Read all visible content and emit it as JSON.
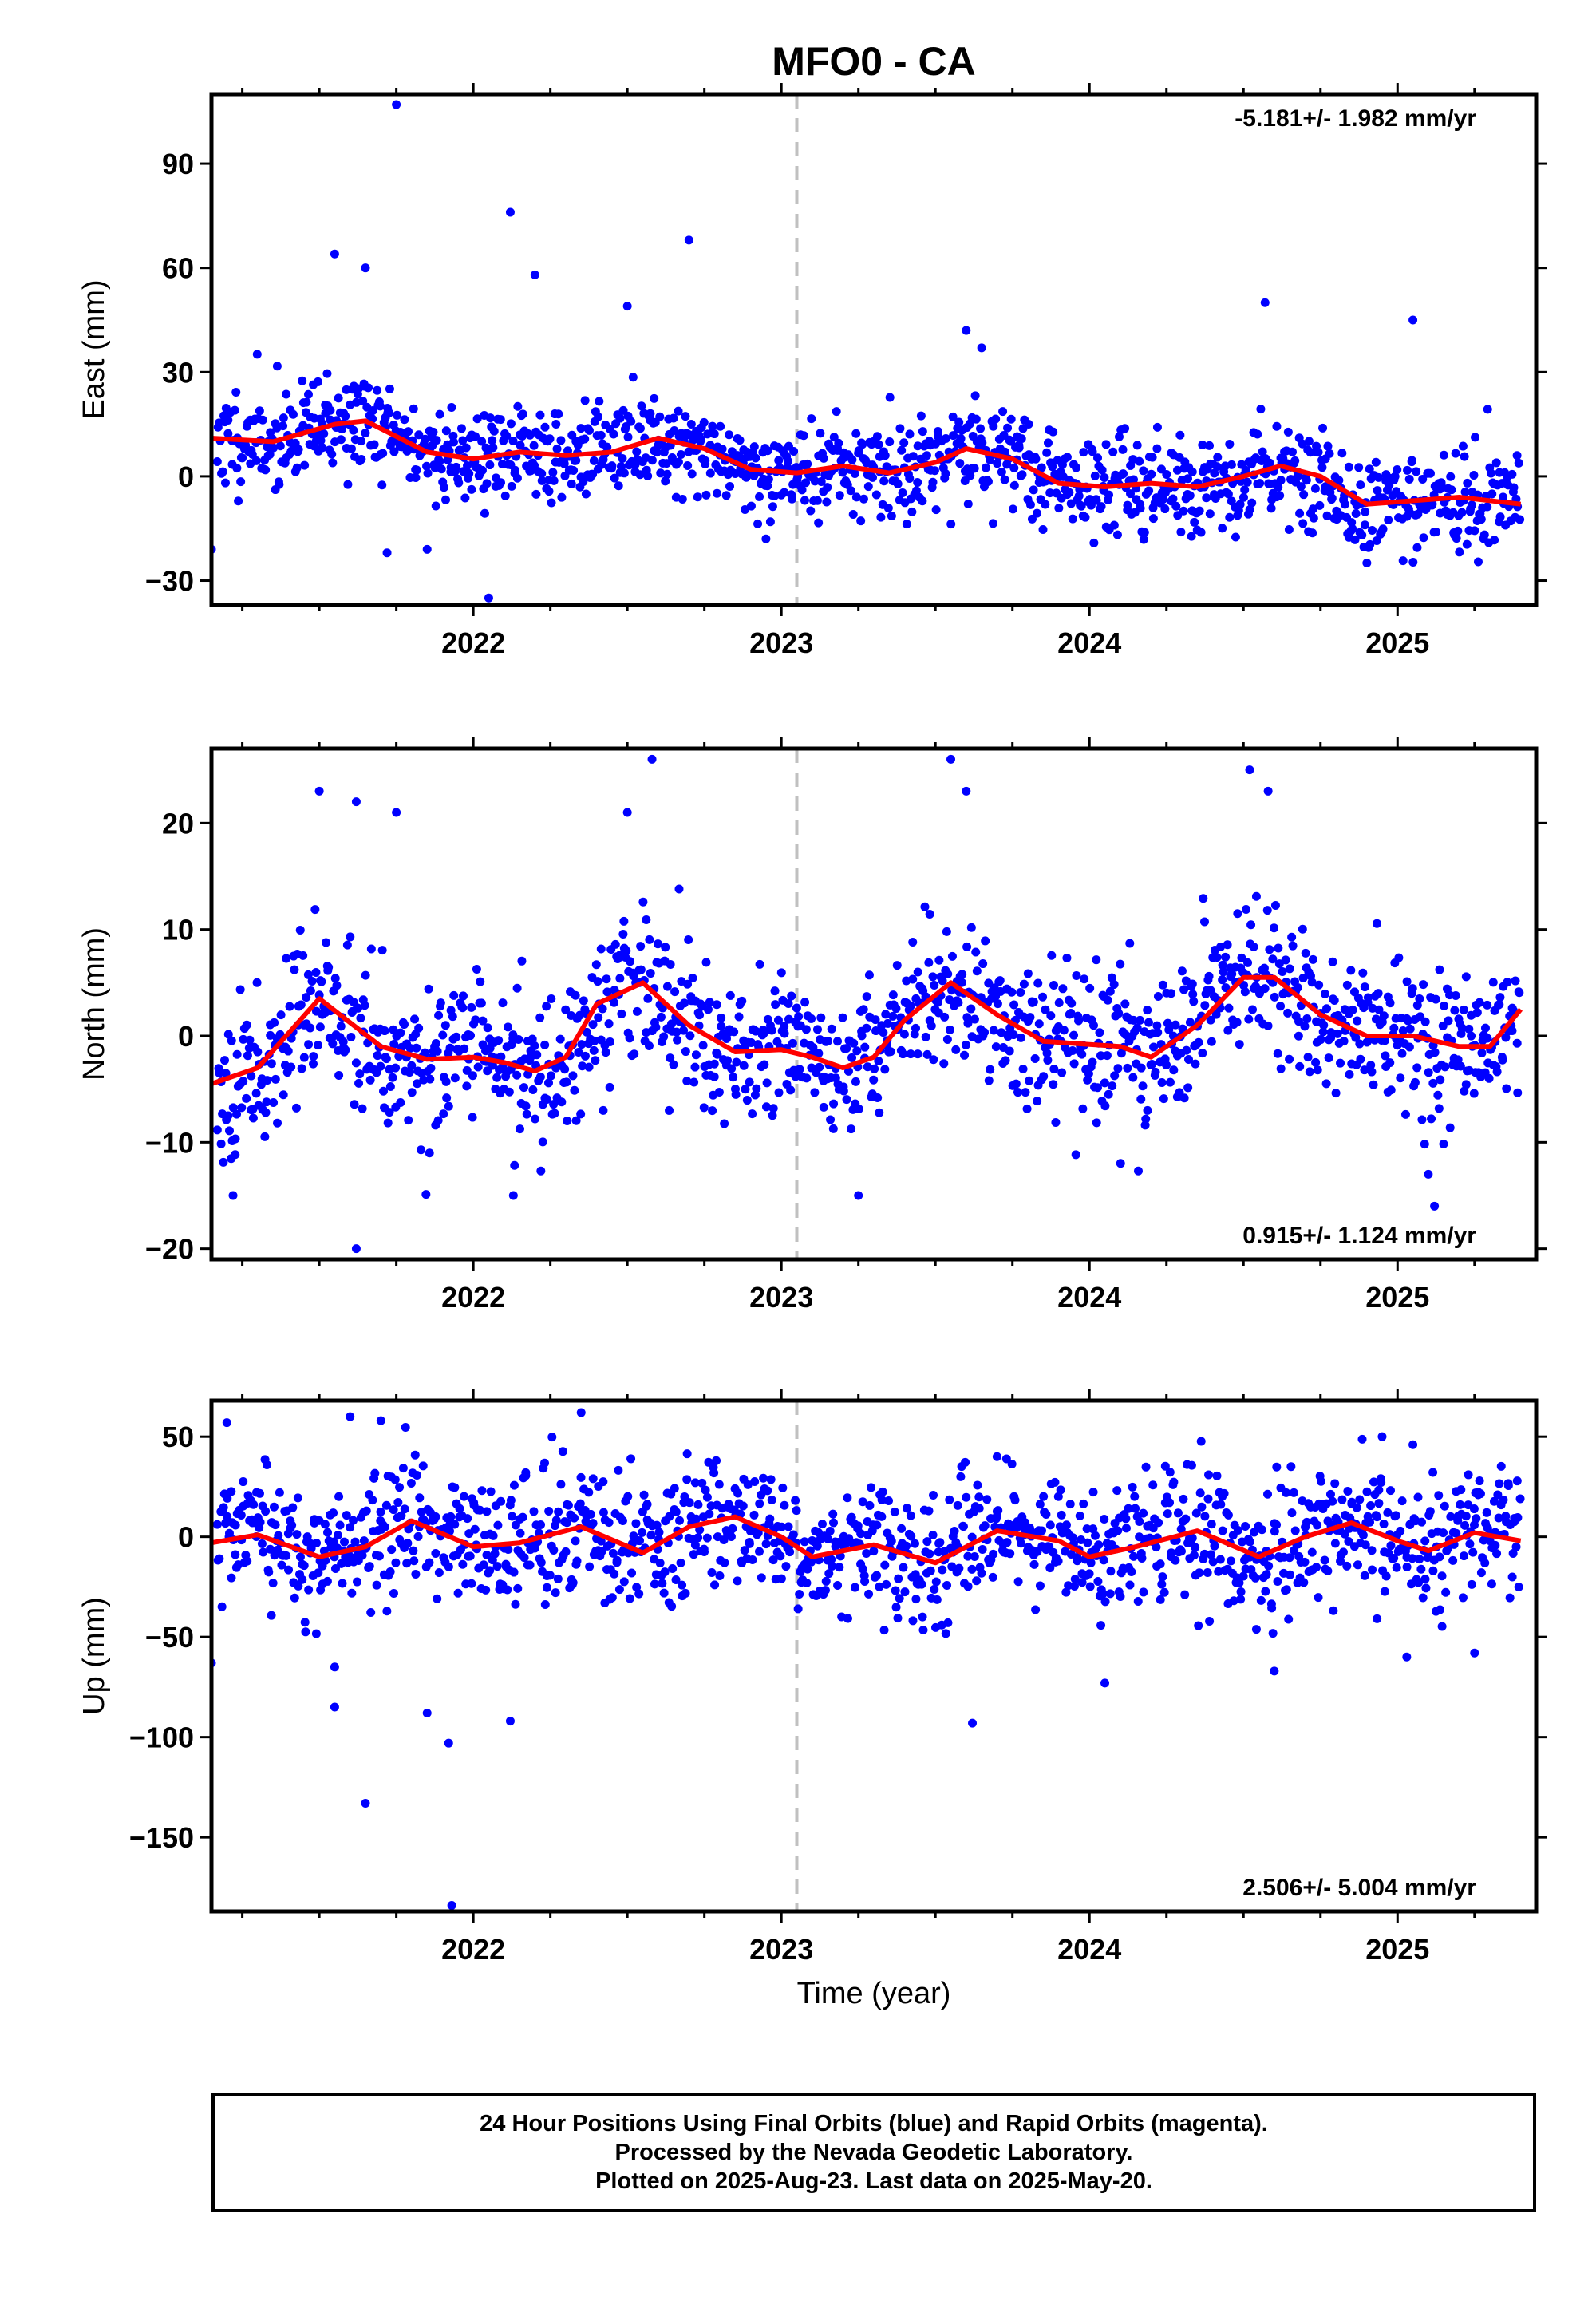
{
  "title": "MFO0 - CA",
  "xlabel": "Time (year)",
  "caption": [
    "24 Hour Positions Using Final Orbits (blue) and Rapid Orbits (magenta).",
    "Processed by the Nevada Geodetic Laboratory.",
    "Plotted on 2025-Aug-23. Last data on 2025-May-20."
  ],
  "colors": {
    "points": "#0000ff",
    "fit": "#ff0000",
    "marker_line": "#c0c0c0",
    "frame": "#000000"
  },
  "chart_data": [
    {
      "type": "scatter",
      "panel": "east",
      "ylabel": "East (mm)",
      "rate": "-5.181+/- 1.982 mm/yr",
      "rate_position": "top-right",
      "xlim": [
        2021.15,
        2025.45
      ],
      "ylim": [
        -37,
        110
      ],
      "yticks": [
        -30,
        0,
        30,
        60,
        90
      ],
      "xticks": [
        2022,
        2023,
        2024,
        2025
      ],
      "vline": 2023.05,
      "fit": {
        "x": [
          2021.15,
          2021.35,
          2021.55,
          2021.65,
          2021.85,
          2022.0,
          2022.15,
          2022.3,
          2022.45,
          2022.6,
          2022.75,
          2022.9,
          2023.05,
          2023.2,
          2023.35,
          2023.5,
          2023.6,
          2023.75,
          2023.9,
          2024.05,
          2024.2,
          2024.35,
          2024.5,
          2024.62,
          2024.75,
          2024.9,
          2025.05,
          2025.2,
          2025.4
        ],
        "y": [
          11,
          10,
          15,
          16,
          7,
          5,
          7,
          6,
          7,
          11,
          8,
          2,
          1,
          3,
          1,
          4,
          8,
          5,
          -2,
          -3,
          -2,
          -3,
          0,
          3,
          0,
          -8,
          -7,
          -6,
          -8
        ]
      },
      "scatter": {
        "seed": 11,
        "noise": 7,
        "outliers": [
          [
            2021.75,
            107
          ],
          [
            2022.12,
            76
          ],
          [
            2022.2,
            58
          ],
          [
            2022.7,
            68
          ],
          [
            2021.55,
            64
          ],
          [
            2021.65,
            60
          ],
          [
            2022.5,
            49
          ],
          [
            2023.6,
            42
          ],
          [
            2024.57,
            50
          ],
          [
            2025.05,
            45
          ],
          [
            2022.05,
            -35
          ],
          [
            2021.72,
            -22
          ],
          [
            2021.85,
            -21
          ],
          [
            2021.15,
            -21
          ],
          [
            2022.95,
            -18
          ],
          [
            2023.65,
            37
          ]
        ]
      }
    },
    {
      "type": "scatter",
      "panel": "north",
      "ylabel": "North (mm)",
      "rate": "0.915+/- 1.124 mm/yr",
      "rate_position": "bottom-right",
      "xlim": [
        2021.15,
        2025.45
      ],
      "ylim": [
        -21,
        27
      ],
      "yticks": [
        -20,
        -10,
        0,
        10,
        20
      ],
      "xticks": [
        2022,
        2023,
        2024,
        2025
      ],
      "vline": 2023.05,
      "fit": {
        "x": [
          2021.15,
          2021.3,
          2021.5,
          2021.7,
          2021.85,
          2022.0,
          2022.1,
          2022.2,
          2022.3,
          2022.4,
          2022.55,
          2022.7,
          2022.85,
          2023.0,
          2023.1,
          2023.2,
          2023.3,
          2023.4,
          2023.55,
          2023.7,
          2023.85,
          2024.0,
          2024.1,
          2024.2,
          2024.35,
          2024.5,
          2024.6,
          2024.75,
          2024.9,
          2025.05,
          2025.2,
          2025.3,
          2025.4
        ],
        "y": [
          -4.5,
          -3,
          3.5,
          -1,
          -2.2,
          -2,
          -2.5,
          -3.3,
          -2,
          3,
          5,
          1,
          -1.5,
          -1.3,
          -2,
          -3,
          -2,
          1.5,
          5,
          2,
          -0.5,
          -0.8,
          -1,
          -2,
          1,
          5.5,
          5.5,
          2,
          0,
          0,
          -1,
          -1,
          2.5
        ]
      },
      "scatter": {
        "seed": 23,
        "noise": 3.5,
        "outliers": [
          [
            2021.5,
            23
          ],
          [
            2021.62,
            22
          ],
          [
            2021.75,
            21
          ],
          [
            2022.58,
            26
          ],
          [
            2023.55,
            26
          ],
          [
            2023.6,
            23
          ],
          [
            2024.52,
            25
          ],
          [
            2024.58,
            23
          ],
          [
            2021.62,
            -20
          ],
          [
            2021.22,
            -15
          ],
          [
            2022.13,
            -15
          ],
          [
            2023.25,
            -15
          ],
          [
            2025.12,
            -16
          ],
          [
            2025.1,
            -13
          ],
          [
            2022.5,
            21
          ]
        ]
      }
    },
    {
      "type": "scatter",
      "panel": "up",
      "ylabel": "Up (mm)",
      "rate": "2.506+/- 5.004 mm/yr",
      "rate_position": "bottom-right",
      "xlim": [
        2021.15,
        2025.45
      ],
      "ylim": [
        -187,
        68
      ],
      "yticks": [
        -150,
        -100,
        -50,
        0,
        50
      ],
      "xticks": [
        2022,
        2023,
        2024,
        2025
      ],
      "vline": 2023.05,
      "fit": {
        "x": [
          2021.15,
          2021.3,
          2021.5,
          2021.65,
          2021.8,
          2022.0,
          2022.15,
          2022.35,
          2022.55,
          2022.7,
          2022.85,
          2023.0,
          2023.1,
          2023.3,
          2023.5,
          2023.7,
          2023.9,
          2024.0,
          2024.15,
          2024.35,
          2024.55,
          2024.7,
          2024.85,
          2025.0,
          2025.1,
          2025.25,
          2025.4
        ],
        "y": [
          -3,
          1,
          -10,
          -5,
          8,
          -5,
          -3,
          5,
          -8,
          5,
          10,
          0,
          -10,
          -4,
          -13,
          3,
          -2,
          -10,
          -5,
          3,
          -10,
          0,
          7,
          -2,
          -7,
          2,
          -2
        ]
      },
      "scatter": {
        "seed": 37,
        "noise": 16,
        "outliers": [
          [
            2021.65,
            -133
          ],
          [
            2021.93,
            -184
          ],
          [
            2021.92,
            -103
          ],
          [
            2021.85,
            -88
          ],
          [
            2022.12,
            -92
          ],
          [
            2021.55,
            -65
          ],
          [
            2021.55,
            -85
          ],
          [
            2021.15,
            -63
          ],
          [
            2023.62,
            -93
          ],
          [
            2024.05,
            -73
          ],
          [
            2024.6,
            -67
          ],
          [
            2025.03,
            -60
          ],
          [
            2025.25,
            -58
          ],
          [
            2022.35,
            62
          ],
          [
            2021.6,
            60
          ],
          [
            2021.7,
            58
          ],
          [
            2024.95,
            50
          ],
          [
            2025.05,
            46
          ],
          [
            2023.7,
            40
          ],
          [
            2021.2,
            57
          ]
        ]
      }
    }
  ]
}
